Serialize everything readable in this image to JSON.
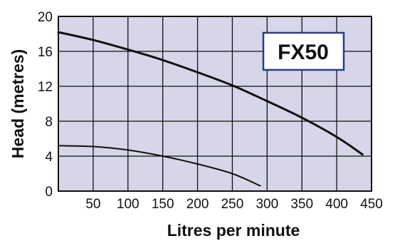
{
  "chart_data": {
    "type": "line",
    "title": "",
    "xlabel": "Litres per minute",
    "ylabel": "Head (metres)",
    "xlim": [
      0,
      450
    ],
    "ylim": [
      0,
      20
    ],
    "x_ticks": [
      50,
      100,
      150,
      200,
      250,
      300,
      350,
      400,
      450
    ],
    "y_ticks": [
      0,
      4,
      8,
      12,
      16,
      20
    ],
    "grid": true,
    "annotation": "FX50",
    "colors": {
      "plot_background": "#d6d6e8",
      "grid": "#111111",
      "line": "#111111",
      "annotation_border": "#2a3b8f"
    },
    "series": [
      {
        "x": [
          0,
          50,
          100,
          150,
          200,
          250,
          300,
          350,
          400,
          437
        ],
        "y": [
          18.2,
          17.3,
          16.2,
          15.0,
          13.6,
          12.1,
          10.3,
          8.4,
          6.2,
          4.2
        ]
      },
      {
        "x": [
          0,
          50,
          100,
          150,
          200,
          250,
          290
        ],
        "y": [
          5.2,
          5.1,
          4.7,
          4.0,
          3.1,
          2.0,
          0.6
        ]
      }
    ]
  }
}
